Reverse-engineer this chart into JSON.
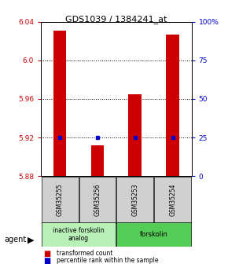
{
  "title": "GDS1039 / 1384241_at",
  "samples": [
    "GSM35255",
    "GSM35256",
    "GSM35253",
    "GSM35254"
  ],
  "red_values": [
    6.031,
    5.912,
    5.965,
    6.027
  ],
  "blue_values": [
    25,
    25,
    25,
    25
  ],
  "ylim_left": [
    5.88,
    6.04
  ],
  "ylim_right": [
    0,
    100
  ],
  "yticks_left": [
    5.88,
    5.92,
    5.96,
    6.0,
    6.04
  ],
  "yticks_right": [
    0,
    25,
    50,
    75,
    100
  ],
  "ytick_labels_right": [
    "0",
    "25",
    "50",
    "75",
    "100%"
  ],
  "bar_color": "#cc0000",
  "dot_color": "#0000cc",
  "bar_width": 0.35,
  "agent_label": "agent",
  "legend_red": "transformed count",
  "legend_blue": "percentile rank within the sample",
  "background_color": "#ffffff",
  "left_tick_color": "#cc0000",
  "right_tick_color": "#0000cc",
  "group1_label": "inactive forskolin\nanalog",
  "group1_color": "#b8f0b8",
  "group2_label": "forskolin",
  "group2_color": "#55cc55"
}
